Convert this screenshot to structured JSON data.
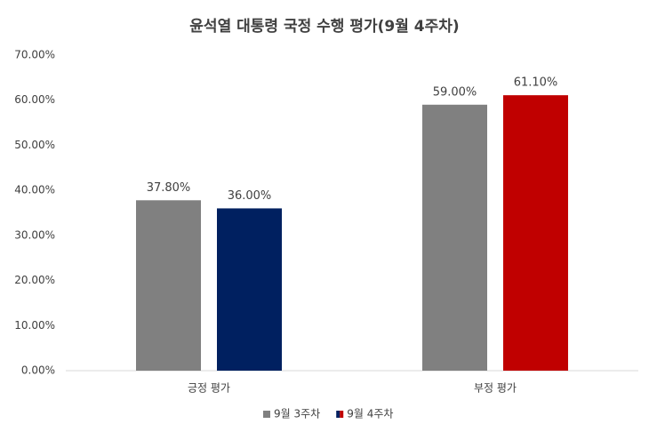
{
  "chart_data": {
    "type": "bar",
    "title": "윤석열 대통령 국정 수행 평가(9월 4주차)",
    "categories": [
      "긍정 평가",
      "부정 평가"
    ],
    "series": [
      {
        "name": "9월 3주차",
        "color": "#808080",
        "values": [
          37.8,
          59.0
        ],
        "value_labels": [
          "37.80%",
          "59.00%"
        ]
      },
      {
        "name": "9월 4주차",
        "colors": [
          "#002060",
          "#c00000"
        ],
        "values": [
          36.0,
          61.1
        ],
        "value_labels": [
          "36.00%",
          "61.10%"
        ]
      }
    ],
    "ylim": [
      0,
      70
    ],
    "yticks": [
      {
        "value": 0,
        "label": "0.00%"
      },
      {
        "value": 10,
        "label": "10.00%"
      },
      {
        "value": 20,
        "label": "20.00%"
      },
      {
        "value": 30,
        "label": "30.00%"
      },
      {
        "value": 40,
        "label": "40.00%"
      },
      {
        "value": 50,
        "label": "50.00%"
      },
      {
        "value": 60,
        "label": "60.00%"
      },
      {
        "value": 70,
        "label": "70.00%"
      }
    ],
    "grid": false,
    "legend": "bottom"
  }
}
